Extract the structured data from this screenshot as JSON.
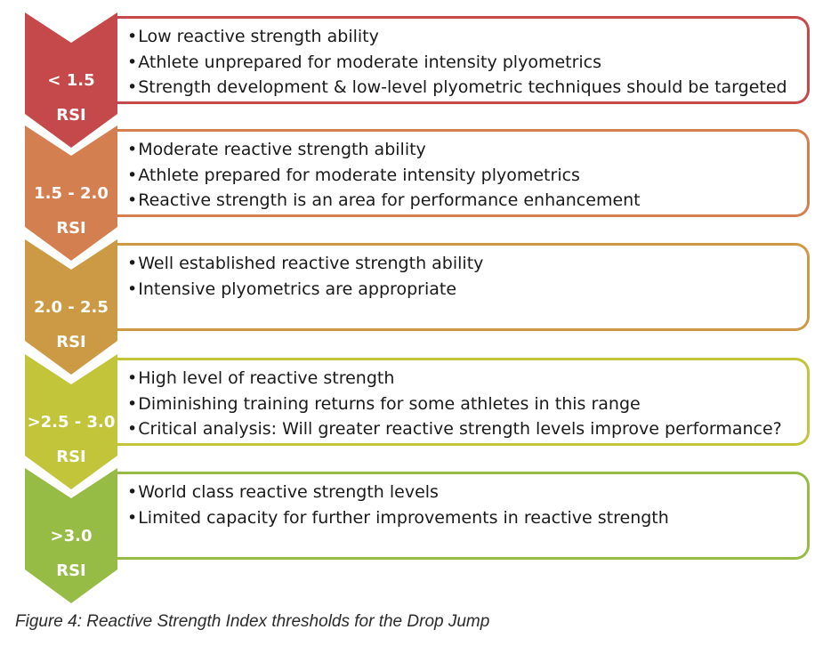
{
  "tiers": [
    {
      "range": "< 1.5",
      "unit": "RSI",
      "color": "#c5484a",
      "bullets": [
        "Low reactive strength ability",
        "Athlete unprepared for moderate intensity plyometrics",
        "Strength development & low-level plyometric techniques should be targeted"
      ]
    },
    {
      "range": "1.5 - 2.0",
      "unit": "RSI",
      "color": "#d47f50",
      "bullets": [
        "Moderate reactive strength ability",
        "Athlete prepared for moderate intensity plyometrics",
        "Reactive strength is an area for performance enhancement"
      ]
    },
    {
      "range": "2.0 - 2.5",
      "unit": "RSI",
      "color": "#cc9a44",
      "bullets": [
        "Well established reactive strength ability",
        "Intensive plyometrics are appropriate"
      ]
    },
    {
      "range": ">2.5 - 3.0",
      "unit": "RSI",
      "color": "#c2c43a",
      "bullets": [
        "High level of reactive strength",
        "Diminishing training returns for some athletes in this range",
        "Critical analysis: Will greater reactive strength levels improve performance?"
      ]
    },
    {
      "range": ">3.0",
      "unit": "RSI",
      "color": "#97bc46",
      "bullets": [
        "World class reactive strength levels",
        "Limited capacity for further improvements in reactive strength"
      ]
    }
  ],
  "caption": "Figure 4: Reactive Strength Index thresholds for the Drop Jump"
}
